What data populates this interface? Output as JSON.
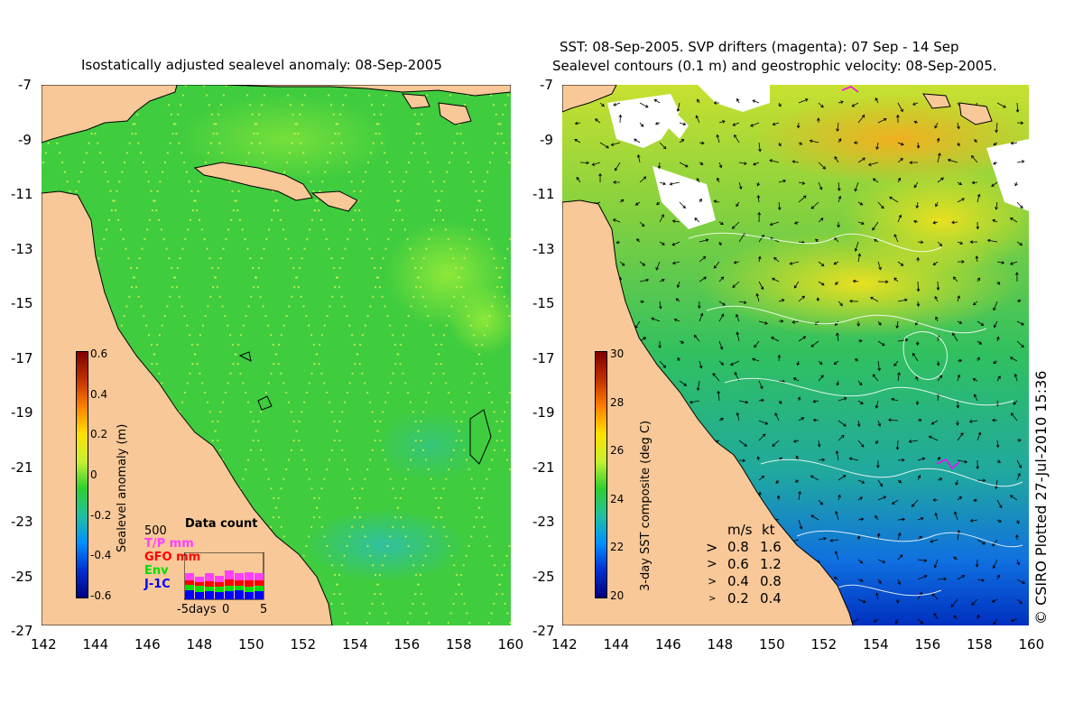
{
  "left_panel": {
    "title": "Isostatically adjusted sealevel anomaly: 08-Sep-2005",
    "y_ticks": [
      "-7",
      "-9",
      "-11",
      "-13",
      "-15",
      "-17",
      "-19",
      "-21",
      "-23",
      "-25",
      "-27"
    ],
    "x_ticks": [
      "142",
      "144",
      "146",
      "148",
      "150",
      "152",
      "154",
      "156",
      "158",
      "160"
    ],
    "colorbar": {
      "label": "Sealevel anomaly (m)",
      "ticks": [
        "0.6",
        "0.4",
        "0.2",
        "0",
        "-0.2",
        "-0.4",
        "-0.6"
      ]
    },
    "data_count": {
      "title": "Data count",
      "max_label": "500",
      "series": [
        {
          "name": "T/P mm",
          "color": "#ff40ff"
        },
        {
          "name": "GFO mm",
          "color": "#ff0000"
        },
        {
          "name": "Env",
          "color": "#00e000"
        },
        {
          "name": "J-1C",
          "color": "#0000ff"
        }
      ],
      "x_ticks": [
        "-5days",
        "0",
        "5"
      ]
    }
  },
  "right_panel": {
    "title_line1": "SST: 08-Sep-2005. SVP drifters (magenta): 07 Sep - 14 Sep",
    "title_line2": "Sealevel contours (0.1 m) and geostrophic velocity: 08-Sep-2005.",
    "y_ticks": [
      "-7",
      "-9",
      "-11",
      "-13",
      "-15",
      "-17",
      "-19",
      "-21",
      "-23",
      "-25",
      "-27"
    ],
    "x_ticks": [
      "142",
      "144",
      "146",
      "148",
      "150",
      "152",
      "154",
      "156",
      "158",
      "160"
    ],
    "colorbar": {
      "label": "3-day SST composite (deg C)",
      "ticks": [
        "30",
        "28",
        "26",
        "24",
        "22",
        "20"
      ]
    },
    "velocity_legend": {
      "header_ms": "m/s",
      "header_kt": "kt",
      "rows": [
        {
          "ms": "0.8",
          "kt": "1.6"
        },
        {
          "ms": "0.6",
          "kt": "1.2"
        },
        {
          "ms": "0.4",
          "kt": "0.8"
        },
        {
          "ms": "0.2",
          "kt": "0.4"
        }
      ]
    }
  },
  "credit": "© CSIRO Plotted 27-Jul-2010 15:36",
  "colors": {
    "land": "#f8c898",
    "ocean_green": "#3ccc3c",
    "missing_data": "#ffffff",
    "drifter": "#ff00ff"
  }
}
